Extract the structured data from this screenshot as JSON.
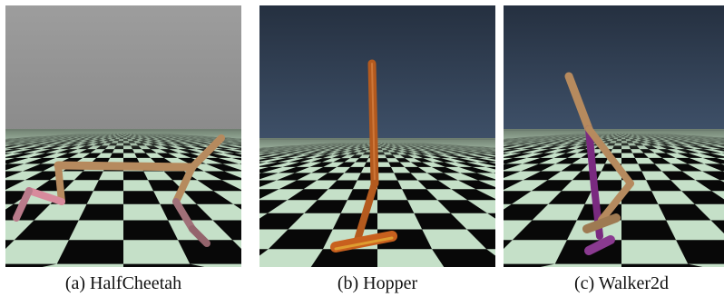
{
  "figures": [
    {
      "id": "a",
      "caption": "(a) HalfCheetah",
      "sky_top": "#9b9b9b",
      "sky_bottom": "#8a8a8a"
    },
    {
      "id": "b",
      "caption": "(b) Hopper",
      "sky_top": "#253040",
      "sky_bottom": "#3c4e66"
    },
    {
      "id": "c",
      "caption": "(c) Walker2d",
      "sky_top": "#253040",
      "sky_bottom": "#3c4e66"
    }
  ],
  "colors": {
    "floor_light": "#c5e0c8",
    "floor_dark": "#080808",
    "horizon_haze": "#6f7f70",
    "limb_tan": "#b68a5e",
    "limb_pink": "#d88a9c",
    "limb_mauve": "#a07078",
    "limb_orange": "#c8601e",
    "limb_purple": "#7a2a80"
  }
}
